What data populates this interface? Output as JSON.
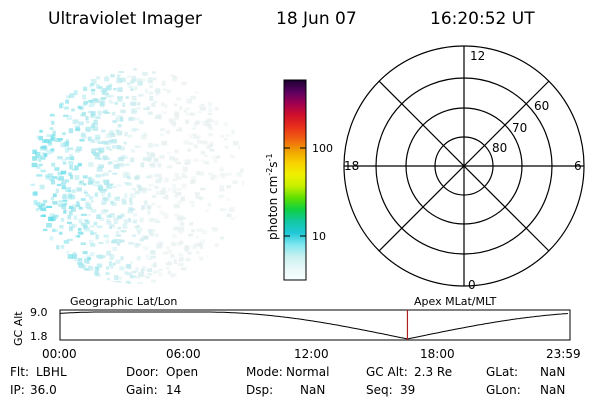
{
  "header": {
    "instrument": "Ultraviolet Imager",
    "date": "18 Jun 07",
    "time": "16:20:52 UT"
  },
  "colorbar": {
    "unit_prefix": "photon cm",
    "unit_exp1": "-2",
    "unit_mid": "s",
    "unit_exp2": "-1",
    "ticks": [
      {
        "label": "100",
        "value": 100
      },
      {
        "label": "10",
        "value": 10
      }
    ],
    "stops": [
      "#1a0030",
      "#5a0060",
      "#a00050",
      "#d0102a",
      "#e8301a",
      "#f06010",
      "#f0a000",
      "#f8d000",
      "#f0f000",
      "#c8f000",
      "#60e000",
      "#10d040",
      "#10c8a0",
      "#20c8d8",
      "#80e8f0",
      "#c8f0f0",
      "#e8f8f8",
      "#f8ffff"
    ]
  },
  "polar_grid": {
    "mlt_labels": {
      "top": "12",
      "left": "18",
      "right": "6",
      "bottom": "0"
    },
    "lat_labels": [
      "80",
      "70",
      "60"
    ]
  },
  "timeline": {
    "ylabel": "GC Alt",
    "yticks": [
      "9.0",
      "1.8"
    ],
    "left_label": "Geographic Lat/Lon",
    "right_label": "Apex MLat/MLT",
    "xticks": [
      "00:00",
      "06:00",
      "12:00",
      "18:00",
      "23:59"
    ],
    "current_time_hours": 16.35,
    "marker_color": "#b02020"
  },
  "status": {
    "row1": [
      {
        "key": "Flt:",
        "value": "LBHL"
      },
      {
        "key": "Door:",
        "value": "Open"
      },
      {
        "key": "Mode:",
        "value": "Normal"
      },
      {
        "key": "GC Alt:",
        "value": "2.3 Re"
      },
      {
        "key": "GLat:",
        "value": "NaN"
      }
    ],
    "row2": [
      {
        "key": "IP:",
        "value": "36.0"
      },
      {
        "key": "Gain:",
        "value": "14"
      },
      {
        "key": "Dsp:",
        "value": "NaN"
      },
      {
        "key": "Seq:",
        "value": "39"
      },
      {
        "key": "GLon:",
        "value": "NaN"
      }
    ]
  },
  "colors": {
    "image_light": "#e8f0f0",
    "image_cyan": "#40d8e8",
    "image_bright": "#10e0f0"
  }
}
